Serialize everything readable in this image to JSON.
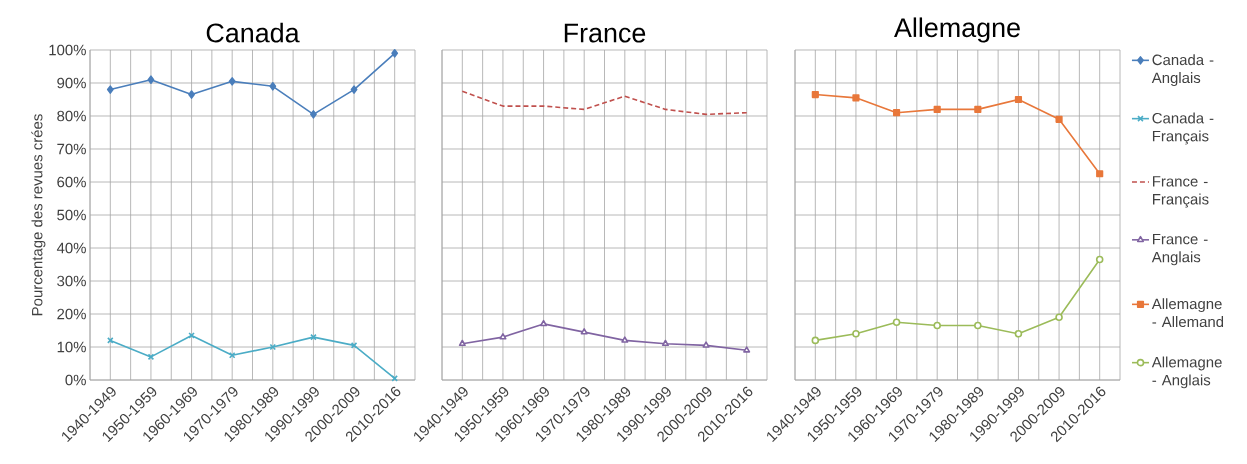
{
  "chart_data": [
    {
      "type": "line",
      "title": "Canada",
      "ylabel": "Pourcentage des revues crées",
      "categories": [
        "1940-1949",
        "1950-1959",
        "1960-1969",
        "1970-1979",
        "1980-1989",
        "1990-1999",
        "2000-2009",
        "2010-2016"
      ],
      "ylim": [
        0,
        100
      ],
      "yticks": [
        {
          "value": 0,
          "label": "0%"
        },
        {
          "value": 10,
          "label": "10%"
        },
        {
          "value": 20,
          "label": "20%"
        },
        {
          "value": 30,
          "label": "30%"
        },
        {
          "value": 40,
          "label": "40%"
        },
        {
          "value": 50,
          "label": "50%"
        },
        {
          "value": 60,
          "label": "60%"
        },
        {
          "value": 70,
          "label": "70%"
        },
        {
          "value": 80,
          "label": "80%"
        },
        {
          "value": 90,
          "label": "90%"
        },
        {
          "value": 100,
          "label": "100%"
        }
      ],
      "grid": true,
      "legend": "right",
      "series": [
        {
          "name": "Canada - Anglais",
          "color": "#4a7ebb",
          "marker": "diamond",
          "values": [
            88,
            91,
            86.5,
            90.5,
            89,
            80.5,
            88,
            99
          ]
        },
        {
          "name": "Canada - Français",
          "color": "#4bacc6",
          "marker": "cross",
          "values": [
            12,
            7,
            13.5,
            7.5,
            10,
            13,
            10.5,
            0.5
          ]
        }
      ]
    },
    {
      "type": "line",
      "title": "France",
      "categories": [
        "1940-1949",
        "1950-1959",
        "1960-1969",
        "1970-1979",
        "1980-1989",
        "1990-1999",
        "2000-2009",
        "2010-2016"
      ],
      "ylim": [
        0,
        100
      ],
      "yticks": [
        {
          "value": 0,
          "label": null
        },
        {
          "value": 10,
          "label": null
        },
        {
          "value": 20,
          "label": null
        },
        {
          "value": 30,
          "label": null
        },
        {
          "value": 40,
          "label": null
        },
        {
          "value": 50,
          "label": null
        },
        {
          "value": 60,
          "label": null
        },
        {
          "value": 70,
          "label": null
        },
        {
          "value": 80,
          "label": null
        },
        {
          "value": 90,
          "label": null
        },
        {
          "value": 100,
          "label": null
        }
      ],
      "grid": true,
      "legend": "right",
      "tick_labels": "x",
      "series": [
        {
          "name": "France - Français",
          "color": "#c0504d",
          "marker": "none",
          "line_style": "dashed",
          "values": [
            87.5,
            83,
            83,
            82,
            86,
            82,
            80.5,
            81
          ]
        },
        {
          "name": "France - Anglais",
          "color": "#8064a2",
          "marker": "triangle",
          "values": [
            11,
            13,
            17,
            14.5,
            12,
            11,
            10.5,
            9
          ]
        }
      ]
    },
    {
      "type": "line",
      "title": "Allemagne",
      "categories": [
        "1940-1949",
        "1950-1959",
        "1960-1969",
        "1970-1979",
        "1980-1989",
        "1990-1999",
        "2000-2009",
        "2010-2016"
      ],
      "ylim": [
        0,
        100
      ],
      "yticks": [
        {
          "value": 0,
          "label": null
        },
        {
          "value": 10,
          "label": null
        },
        {
          "value": 20,
          "label": null
        },
        {
          "value": 30,
          "label": null
        },
        {
          "value": 40,
          "label": null
        },
        {
          "value": 50,
          "label": null
        },
        {
          "value": 60,
          "label": null
        },
        {
          "value": 70,
          "label": null
        },
        {
          "value": 80,
          "label": null
        },
        {
          "value": 90,
          "label": null
        },
        {
          "value": 100,
          "label": null
        }
      ],
      "grid": true,
      "legend": "right",
      "tick_labels": "x",
      "series": [
        {
          "name": "Allemagne - Allemand",
          "color": "#e8773a",
          "marker": "square",
          "values": [
            86.5,
            85.5,
            81,
            82,
            82,
            85,
            79,
            62.5
          ]
        },
        {
          "name": "Allemagne - Anglais",
          "color": "#9bbb59",
          "marker": "circle",
          "values": [
            12,
            14,
            17.5,
            16.5,
            16.5,
            14,
            19,
            36.5
          ]
        }
      ]
    }
  ]
}
